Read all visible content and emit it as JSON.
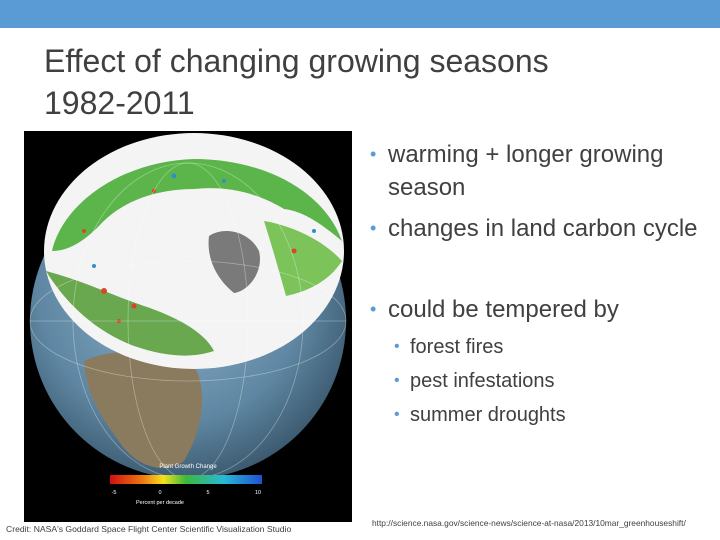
{
  "title": {
    "line1": "Effect of changing growing seasons",
    "line2": "1982-2011"
  },
  "bullets": [
    {
      "text": "warming + longer growing season"
    },
    {
      "text": "changes in land carbon cycle"
    },
    {
      "text": "could be tempered by"
    }
  ],
  "sub_bullets": [
    {
      "text": "forest fires"
    },
    {
      "text": "pest infestations"
    },
    {
      "text": "summer droughts"
    }
  ],
  "legend": {
    "title": "Plant Growth Change",
    "ticks": [
      "-5",
      "0",
      "5",
      "10"
    ],
    "unit": "Percent per decade"
  },
  "credit": "Credit: NASA's Goddard Space Flight Center Scientific Visualization Studio",
  "url": "http://science.nasa.gov/science-news/science-at-nasa/2013/10mar_greenhouseshift/",
  "colors": {
    "accent": "#5a9bd5",
    "text": "#404040"
  }
}
